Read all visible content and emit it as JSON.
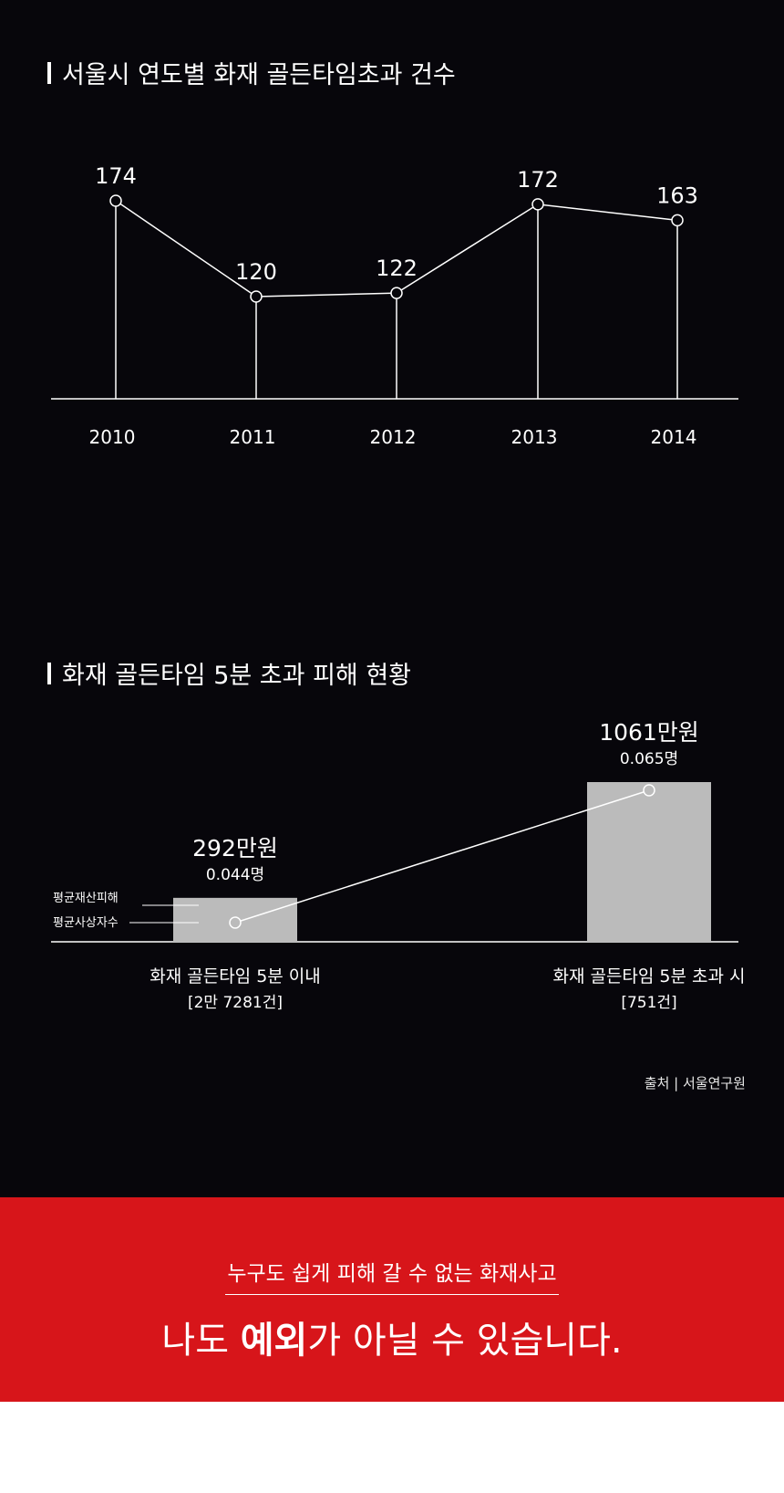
{
  "chart1": {
    "title": "서울시 연도별 화재 골든타임초과 건수",
    "chart_data": {
      "type": "line",
      "x": [
        "2010",
        "2011",
        "2012",
        "2013",
        "2014"
      ],
      "values": [
        174,
        120,
        122,
        172,
        163
      ],
      "title": "서울시 연도별 화재 골든타임초과 건수",
      "xlabel": "",
      "ylabel": "",
      "grid": false,
      "colors": {
        "line": "#ffffff",
        "background": "#07060b"
      }
    }
  },
  "chart2": {
    "title": "화재 골든타임 5분 초과 피해 현황",
    "legend": {
      "property": "평균재산피해",
      "casualty": "평균사상자수"
    },
    "chart_data": {
      "type": "bar",
      "categories": [
        "화재 골든타임 5분 이내",
        "화재 골든타임 5분 초과 시"
      ],
      "category_counts": [
        "[2만 7281건]",
        "[751건]"
      ],
      "series": [
        {
          "name": "평균재산피해",
          "values": [
            292,
            1061
          ],
          "labels": [
            "292만원",
            "1061만원"
          ],
          "color": "#bbbbbb"
        },
        {
          "name": "평균사상자수",
          "values": [
            0.044,
            0.065
          ],
          "labels": [
            "0.044명",
            "0.065명"
          ],
          "color": "#ffffff"
        }
      ]
    }
  },
  "source": "출처 | 서울연구원",
  "banner": {
    "subtitle": "누구도 쉽게 피해 갈 수 없는 화재사고",
    "line_pre": "나도 ",
    "line_bold": "예외",
    "line_post": "가 아닐 수 있습니다."
  }
}
